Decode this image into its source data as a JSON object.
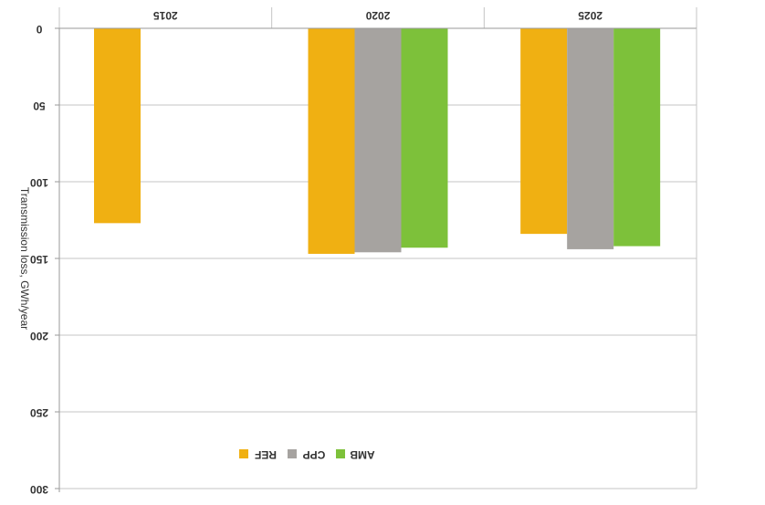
{
  "chart_data": {
    "type": "bar",
    "orientation": "inverted",
    "categories": [
      "2015",
      "2020",
      "2025"
    ],
    "ylabel": "Transmission loss, GWh/year",
    "ylim": [
      0,
      300
    ],
    "yticks": [
      0,
      50,
      100,
      150,
      200,
      250,
      300
    ],
    "grid": true,
    "legend_position": "bottom-center",
    "series": [
      {
        "name": "REF",
        "color": "#F0B012",
        "values": [
          127,
          147,
          134
        ]
      },
      {
        "name": "CPP",
        "color": "#A6A3A0",
        "values": [
          null,
          146,
          144
        ]
      },
      {
        "name": "AMB",
        "color": "#7DC13A",
        "values": [
          null,
          143,
          142
        ]
      }
    ]
  }
}
